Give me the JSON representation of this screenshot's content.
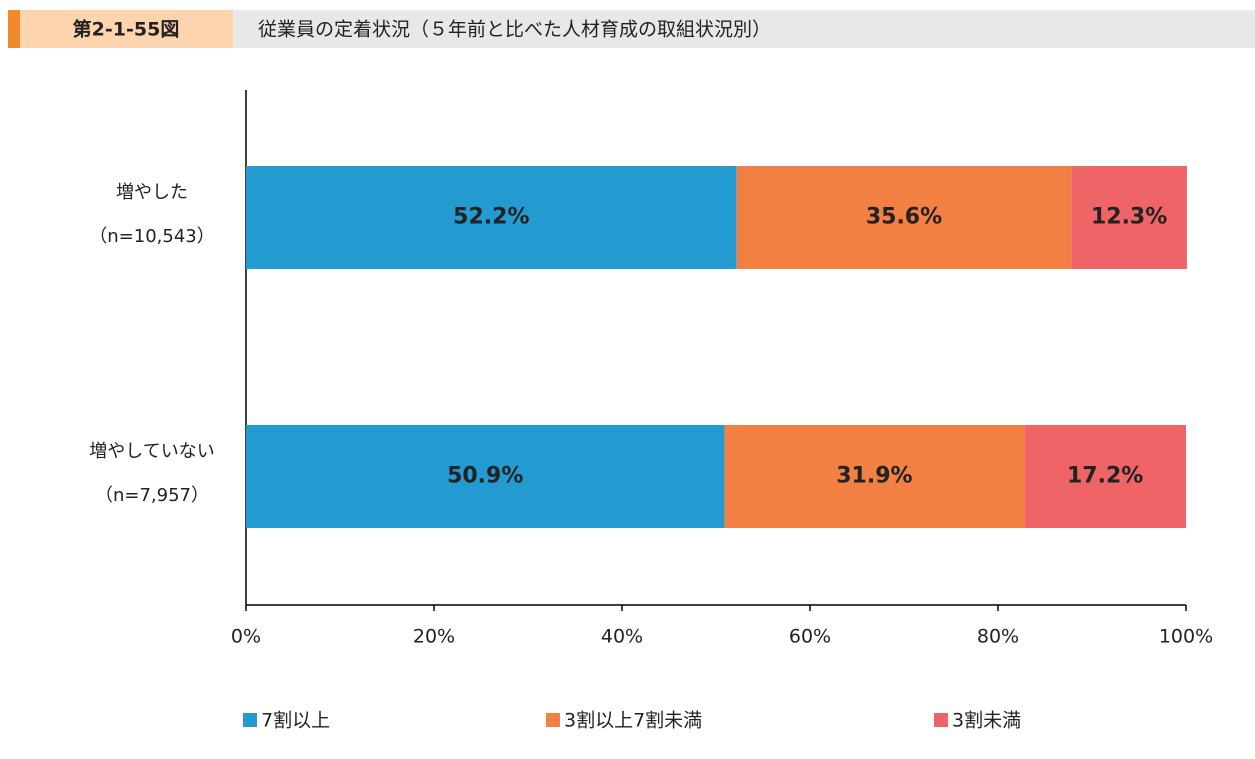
{
  "chart_data": {
    "type": "stacked-bar-horizontal",
    "figure_number": "第2-1-55図",
    "title": "従業員の定着状況（５年前と比べた人材育成の取組状況別）",
    "categories": [
      [
        "増やした",
        "（n=10,543）"
      ],
      [
        "増やしていない",
        "（n=7,957）"
      ]
    ],
    "series": [
      {
        "name": "7割以上",
        "color": "#239bd0",
        "values": [
          52.2,
          50.9
        ],
        "value_labels": [
          "52.2%",
          "50.9%"
        ]
      },
      {
        "name": "3割以上7割未満",
        "color": "#f18042",
        "values": [
          35.6,
          31.9
        ],
        "value_labels": [
          "35.6%",
          "31.9%"
        ]
      },
      {
        "name": "3割未満",
        "color": "#ef6466",
        "values": [
          12.3,
          17.2
        ],
        "value_labels": [
          "12.3%",
          "17.2%"
        ]
      }
    ],
    "xlim": [
      0,
      100
    ],
    "xticks": [
      {
        "value": 0,
        "label": "0%"
      },
      {
        "value": 20,
        "label": "20%"
      },
      {
        "value": 40,
        "label": "40%"
      },
      {
        "value": 60,
        "label": "60%"
      },
      {
        "value": 80,
        "label": "80%"
      },
      {
        "value": 100,
        "label": "100%"
      }
    ],
    "legend": "bottom"
  }
}
